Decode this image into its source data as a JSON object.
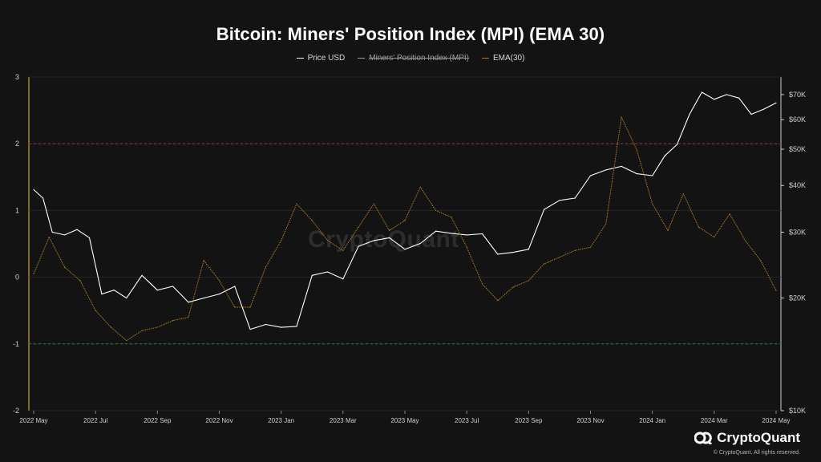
{
  "chart_data": {
    "type": "line",
    "title": "Bitcoin: Miners' Position Index (MPI) (EMA 30)",
    "legend": [
      {
        "name": "Price USD",
        "color": "#ffffff",
        "enabled": true
      },
      {
        "name": "Miners' Position Index (MPI)",
        "color": "#9a9a9a",
        "enabled": false
      },
      {
        "name": "EMA(30)",
        "color": "#b07a1a",
        "enabled": true
      }
    ],
    "x_ticks": [
      "2022 May",
      "2022 Jul",
      "2022 Sep",
      "2022 Nov",
      "2023 Jan",
      "2023 Mar",
      "2023 May",
      "2023 Jul",
      "2023 Sep",
      "2023 Nov",
      "2024 Jan",
      "2024 Mar",
      "2024 May"
    ],
    "left_axis": {
      "ticks": [
        "3",
        "2",
        "1",
        "0",
        "-1",
        "-2"
      ],
      "range": [
        -2,
        3
      ]
    },
    "right_axis": {
      "ticks": [
        "$70K",
        "$60K",
        "$50K",
        "$40K",
        "$30K",
        "$20K",
        "$10K"
      ],
      "scale": "log",
      "range": [
        10000,
        78000
      ]
    },
    "reference_lines": [
      {
        "value": 2,
        "color": "#8a3b3b"
      },
      {
        "value": -1,
        "color": "#2f7a3c"
      }
    ],
    "x_index_range": [
      0,
      24
    ],
    "series": [
      {
        "name": "Price USD",
        "axis": "right",
        "color": "#ffffff",
        "x": [
          0,
          0.3,
          0.6,
          1,
          1.4,
          1.8,
          2.2,
          2.6,
          3,
          3.5,
          4,
          4.5,
          5,
          5.5,
          6,
          6.5,
          7,
          7.5,
          8,
          8.5,
          9,
          9.5,
          10,
          10.5,
          11,
          11.5,
          12,
          12.5,
          13,
          13.5,
          14,
          14.5,
          15,
          15.5,
          16,
          16.5,
          17,
          17.5,
          18,
          18.5,
          19,
          19.5,
          20,
          20.4,
          20.8,
          21.2,
          21.6,
          22,
          22.4,
          22.8,
          23.2,
          23.6,
          24
        ],
        "values": [
          39000,
          37000,
          30000,
          29500,
          30500,
          29000,
          20500,
          21000,
          20000,
          23000,
          21000,
          21500,
          19500,
          20000,
          20500,
          21500,
          16500,
          17000,
          16700,
          16800,
          23000,
          23500,
          22500,
          27500,
          28500,
          29000,
          27000,
          28000,
          30200,
          29800,
          29500,
          29700,
          26200,
          26500,
          27000,
          34500,
          36500,
          37000,
          42500,
          44000,
          45000,
          43000,
          42500,
          48000,
          51500,
          62000,
          71000,
          68000,
          70000,
          68500,
          62000,
          64000,
          66500
        ]
      },
      {
        "name": "EMA(30)",
        "axis": "left",
        "color": "#b07a1a",
        "x": [
          0,
          0.5,
          1,
          1.5,
          2,
          2.5,
          3,
          3.5,
          4,
          4.5,
          5,
          5.5,
          6,
          6.5,
          7,
          7.5,
          8,
          8.5,
          9,
          9.5,
          10,
          10.5,
          11,
          11.5,
          12,
          12.5,
          13,
          13.5,
          14,
          14.5,
          15,
          15.5,
          16,
          16.5,
          17,
          17.5,
          18,
          18.5,
          19,
          19.5,
          20,
          20.5,
          21,
          21.5,
          22,
          22.5,
          23,
          23.5,
          24
        ],
        "values": [
          0.05,
          0.6,
          0.15,
          -0.05,
          -0.5,
          -0.75,
          -0.95,
          -0.8,
          -0.75,
          -0.65,
          -0.6,
          0.25,
          -0.05,
          -0.45,
          -0.45,
          0.15,
          0.55,
          1.1,
          0.85,
          0.55,
          0.4,
          0.75,
          1.1,
          0.7,
          0.85,
          1.35,
          1.0,
          0.9,
          0.45,
          -0.1,
          -0.35,
          -0.15,
          -0.05,
          0.2,
          0.3,
          0.4,
          0.45,
          0.8,
          2.4,
          1.9,
          1.1,
          0.7,
          1.25,
          0.75,
          0.6,
          0.95,
          0.55,
          0.25,
          -0.2
        ]
      }
    ]
  },
  "watermark": "CryptoQuant",
  "brand": {
    "name": "CryptoQuant",
    "copyright": "© CryptoQuant. All rights reserved."
  }
}
